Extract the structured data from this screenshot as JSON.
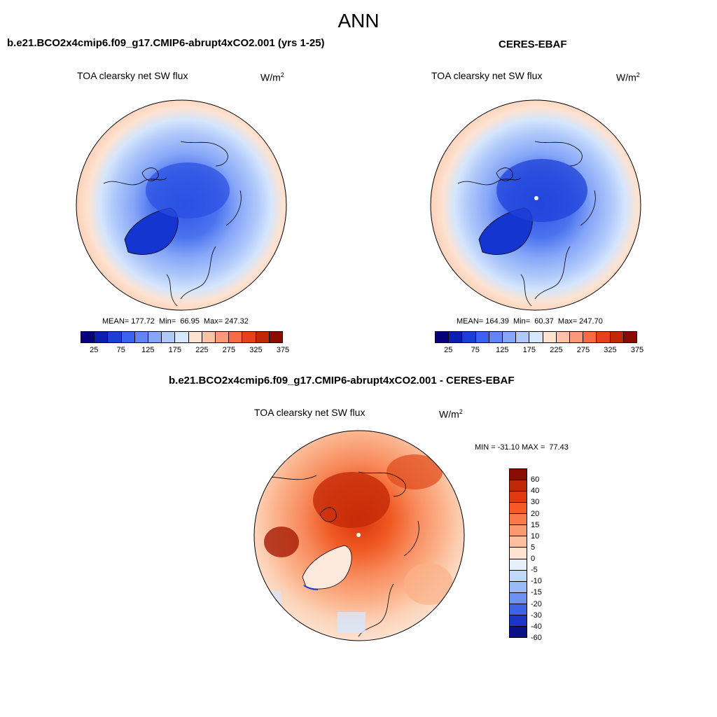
{
  "main_title": "ANN",
  "panels": [
    {
      "title": "b.e21.BCO2x4cmip6.f09_g17.CMIP6-abrupt4xCO2.001 (yrs 1-25)",
      "variable": "TOA clearsky net SW flux",
      "units_base": "W/m",
      "units_sup": "2",
      "stats": "MEAN= 177.72  Min=  66.95  Max= 247.32"
    },
    {
      "title": "CERES-EBAF",
      "variable": "TOA clearsky net SW flux",
      "units_base": "W/m",
      "units_sup": "2",
      "stats": "MEAN= 164.39  Min=  60.37  Max= 247.70"
    },
    {
      "title": "b.e21.BCO2x4cmip6.f09_g17.CMIP6-abrupt4xCO2.001 - CERES-EBAF",
      "variable": "TOA clearsky net SW flux",
      "units_base": "W/m",
      "units_sup": "2",
      "stats": "MIN = -31.10 MAX =  77.43"
    }
  ],
  "colorbar_abs": {
    "colors": [
      "#08007a",
      "#0a1fb0",
      "#1a3ed6",
      "#3a62f0",
      "#6086f5",
      "#86a6f8",
      "#b0c9fa",
      "#d6e6fc",
      "#fde2d0",
      "#fcc2a5",
      "#fb9a78",
      "#f76a45",
      "#e6401c",
      "#c02808",
      "#8a0c00"
    ],
    "labels": [
      "25",
      "75",
      "125",
      "175",
      "225",
      "275",
      "325",
      "375"
    ]
  },
  "colorbar_diff": {
    "colors": [
      "#8a0c00",
      "#c02808",
      "#e03a10",
      "#f55a24",
      "#f87a4a",
      "#fa9a72",
      "#fcc0a0",
      "#fde4d2",
      "#e6f0fc",
      "#c2d8fa",
      "#98baf7",
      "#6c92f2",
      "#3c62e6",
      "#1a36c8",
      "#08108a"
    ],
    "labels": [
      "60",
      "40",
      "30",
      "20",
      "15",
      "10",
      "5",
      "0",
      "-5",
      "-10",
      "-15",
      "-20",
      "-30",
      "-40",
      "-60"
    ]
  }
}
